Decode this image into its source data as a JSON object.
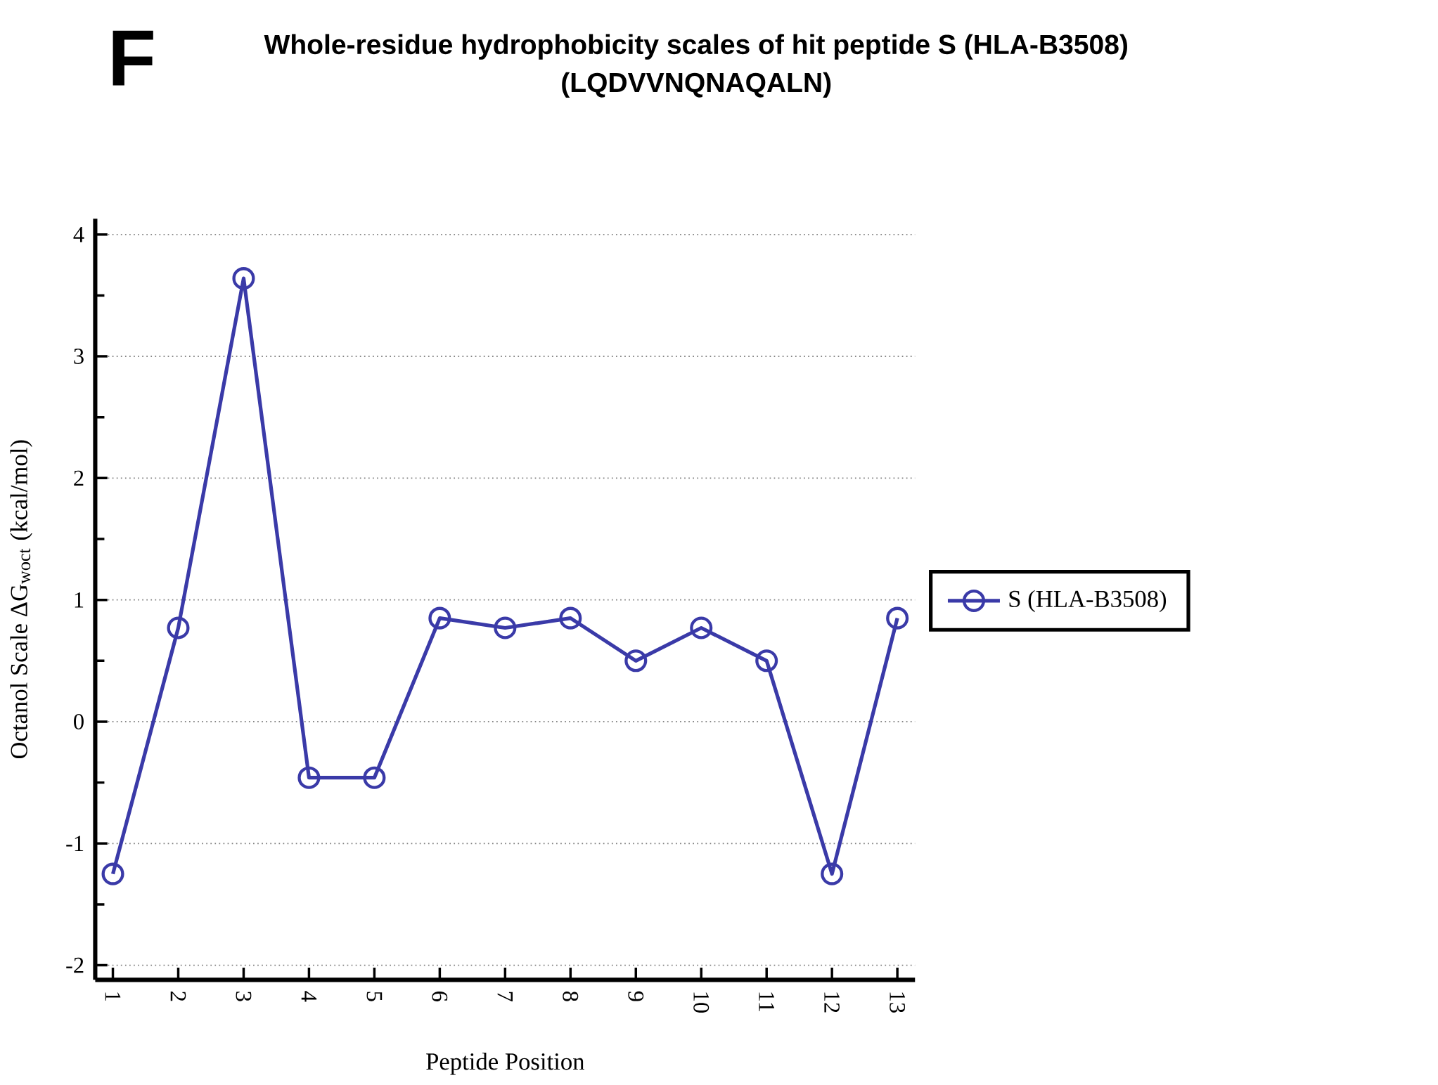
{
  "chart_data": {
    "type": "line",
    "title": "Whole-residue hydrophobicity scales of hit peptide S (HLA-B3508)",
    "subtitle": "(LQDVVNQNAQALN)",
    "xlabel": "Peptide Position",
    "ylabel": "Octanol Scale ΔG$_{woct}$ (kcal/mol)",
    "annotations": [
      "F"
    ],
    "x": [
      1,
      2,
      3,
      4,
      5,
      6,
      7,
      8,
      9,
      10,
      11,
      12,
      13
    ],
    "series": [
      {
        "name": "S (HLA-B3508)",
        "color": "#3a3aa8",
        "values": [
          -1.25,
          0.77,
          3.64,
          -0.46,
          -0.46,
          0.85,
          0.77,
          0.85,
          0.5,
          0.77,
          0.5,
          -1.25,
          0.85
        ]
      }
    ],
    "xlim": [
      0.73,
      13.27
    ],
    "ylim": [
      -2.12,
      4.13
    ],
    "xticks": [
      1,
      2,
      3,
      4,
      5,
      6,
      7,
      8,
      9,
      10,
      11,
      12,
      13
    ],
    "yticks": [
      -2,
      -1,
      0,
      1,
      2,
      3,
      4
    ],
    "grid": "y",
    "legend": "right",
    "marker": "circle",
    "line_style": "solid"
  }
}
